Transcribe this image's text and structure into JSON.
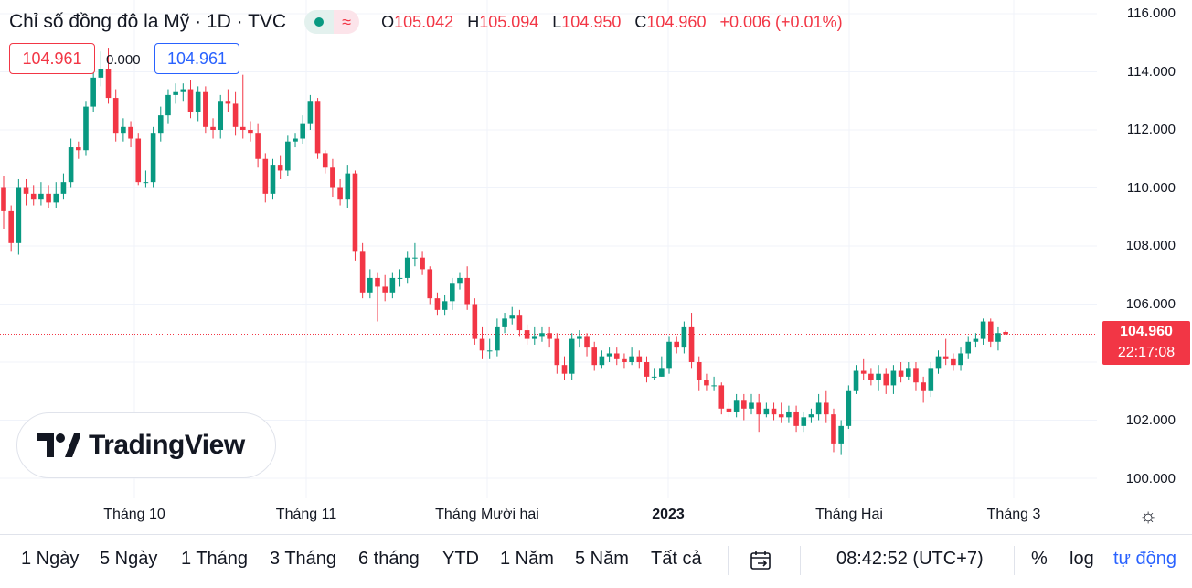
{
  "header": {
    "title": "Chỉ số đồng đô la Mỹ · 1D · TVC",
    "badge_text": "≈",
    "ohlc": {
      "o_label": "O",
      "o": "105.042",
      "h_label": "H",
      "h": "105.094",
      "l_label": "L",
      "l": "104.950",
      "c_label": "C",
      "c": "104.960",
      "change": "+0.006 (+0.01%)"
    }
  },
  "trade": {
    "sell": "104.961",
    "spread": "0.000",
    "buy": "104.961"
  },
  "logo_text": "TradingView",
  "price_label": {
    "price": "104.960",
    "countdown": "22:17:08"
  },
  "time_bar": {
    "ranges": [
      "1 Ngày",
      "5 Ngày",
      "1 Tháng",
      "3 Tháng",
      "6 tháng",
      "YTD",
      "1 Năm",
      "5 Năm",
      "Tất cả"
    ],
    "clock": "08:42:52 (UTC+7)",
    "percent": "%",
    "log": "log",
    "auto": "tự động"
  },
  "colors": {
    "up": "#089981",
    "down": "#f23645",
    "grid": "#f0f3fa",
    "accent": "#2962ff"
  },
  "chart_data": {
    "type": "candlestick",
    "title": "Chỉ số đồng đô la Mỹ · 1D · TVC",
    "interval": "1D",
    "x_tick_labels": [
      "Tháng 10",
      "Tháng 11",
      "Tháng Mười hai",
      "2023",
      "Tháng Hai",
      "Tháng 3"
    ],
    "y_tick_labels": [
      "116.000",
      "114.000",
      "112.000",
      "110.000",
      "108.000",
      "106.000",
      "102.000",
      "100.000"
    ],
    "ylim": [
      99.5,
      116.3
    ],
    "last_price": 104.96,
    "candles": [
      [
        110.0,
        109.2,
        110.4,
        108.6
      ],
      [
        109.2,
        108.1,
        109.4,
        107.8
      ],
      [
        108.1,
        110.0,
        110.3,
        107.7
      ],
      [
        110.0,
        109.8,
        110.3,
        109.4
      ],
      [
        109.8,
        109.6,
        110.1,
        109.4
      ],
      [
        109.6,
        109.8,
        110.2,
        109.4
      ],
      [
        109.8,
        109.5,
        110.1,
        109.3
      ],
      [
        109.5,
        109.8,
        110.2,
        109.3
      ],
      [
        109.8,
        110.2,
        110.5,
        109.6
      ],
      [
        110.2,
        111.4,
        111.7,
        110.0
      ],
      [
        111.4,
        111.3,
        111.6,
        111.0
      ],
      [
        111.3,
        112.8,
        113.0,
        111.1
      ],
      [
        112.8,
        113.8,
        114.2,
        112.6
      ],
      [
        113.8,
        114.1,
        114.7,
        113.5
      ],
      [
        114.1,
        113.1,
        114.8,
        112.9
      ],
      [
        113.1,
        111.9,
        113.4,
        111.6
      ],
      [
        111.9,
        112.1,
        112.4,
        111.6
      ],
      [
        112.1,
        111.7,
        112.3,
        111.4
      ],
      [
        111.7,
        110.2,
        111.9,
        110.1
      ],
      [
        110.2,
        110.2,
        110.6,
        110.0
      ],
      [
        110.2,
        111.9,
        112.1,
        110.0
      ],
      [
        111.9,
        112.5,
        112.8,
        111.6
      ],
      [
        112.5,
        113.2,
        113.4,
        112.2
      ],
      [
        113.2,
        113.3,
        113.6,
        112.9
      ],
      [
        113.3,
        113.4,
        113.6,
        113.0
      ],
      [
        113.4,
        112.6,
        113.7,
        112.4
      ],
      [
        112.6,
        113.3,
        113.5,
        112.3
      ],
      [
        113.3,
        112.1,
        113.5,
        111.9
      ],
      [
        112.1,
        112.0,
        112.4,
        111.7
      ],
      [
        112.0,
        113.0,
        113.2,
        111.7
      ],
      [
        113.0,
        112.9,
        113.4,
        112.6
      ],
      [
        112.9,
        112.1,
        113.3,
        111.8
      ],
      [
        112.1,
        112.0,
        113.9,
        111.7
      ],
      [
        112.0,
        111.9,
        112.3,
        111.6
      ],
      [
        111.9,
        111.0,
        112.2,
        110.7
      ],
      [
        111.0,
        109.8,
        111.2,
        109.5
      ],
      [
        109.8,
        110.8,
        111.0,
        109.6
      ],
      [
        110.8,
        110.6,
        111.1,
        110.3
      ],
      [
        110.6,
        111.6,
        111.8,
        110.4
      ],
      [
        111.6,
        111.7,
        111.9,
        111.4
      ],
      [
        111.7,
        112.2,
        112.5,
        111.5
      ],
      [
        112.2,
        113.0,
        113.2,
        112.0
      ],
      [
        113.0,
        111.2,
        113.1,
        111.0
      ],
      [
        111.2,
        110.7,
        111.3,
        110.5
      ],
      [
        110.7,
        110.0,
        111.0,
        109.7
      ],
      [
        110.0,
        109.6,
        110.3,
        109.4
      ],
      [
        109.6,
        110.5,
        110.8,
        109.3
      ],
      [
        110.5,
        107.8,
        110.6,
        107.5
      ],
      [
        107.8,
        106.4,
        108.1,
        106.2
      ],
      [
        106.4,
        106.9,
        107.2,
        106.2
      ],
      [
        106.9,
        106.6,
        107.1,
        105.4
      ],
      [
        106.6,
        106.4,
        107.0,
        106.1
      ],
      [
        106.4,
        106.9,
        107.1,
        106.2
      ],
      [
        106.9,
        106.9,
        107.2,
        106.6
      ],
      [
        106.9,
        107.6,
        107.8,
        106.7
      ],
      [
        107.6,
        107.6,
        108.1,
        107.3
      ],
      [
        107.6,
        107.2,
        107.8,
        107.0
      ],
      [
        107.2,
        106.2,
        107.3,
        106.0
      ],
      [
        106.2,
        105.8,
        106.4,
        105.6
      ],
      [
        105.8,
        106.1,
        106.3,
        105.6
      ],
      [
        106.1,
        106.7,
        106.9,
        105.8
      ],
      [
        106.7,
        106.9,
        107.1,
        106.5
      ],
      [
        106.9,
        106.0,
        107.3,
        105.8
      ],
      [
        106.0,
        104.8,
        106.2,
        104.6
      ],
      [
        104.8,
        104.4,
        105.2,
        104.1
      ],
      [
        104.4,
        104.4,
        104.8,
        104.1
      ],
      [
        104.4,
        105.2,
        105.5,
        104.2
      ],
      [
        105.2,
        105.5,
        105.7,
        105.0
      ],
      [
        105.5,
        105.6,
        105.9,
        105.3
      ],
      [
        105.6,
        105.1,
        105.8,
        104.9
      ],
      [
        105.1,
        104.8,
        105.3,
        104.6
      ],
      [
        104.8,
        104.9,
        105.2,
        104.6
      ],
      [
        104.9,
        105.0,
        105.2,
        104.7
      ],
      [
        105.0,
        104.8,
        105.2,
        104.5
      ],
      [
        104.8,
        103.9,
        105.0,
        103.6
      ],
      [
        103.9,
        103.6,
        104.2,
        103.4
      ],
      [
        103.6,
        104.8,
        105.0,
        103.4
      ],
      [
        104.8,
        104.9,
        105.1,
        104.5
      ],
      [
        104.9,
        104.5,
        105.0,
        104.2
      ],
      [
        104.5,
        103.9,
        104.7,
        103.7
      ],
      [
        103.9,
        104.2,
        104.4,
        103.8
      ],
      [
        104.2,
        104.3,
        104.5,
        104.0
      ],
      [
        104.3,
        104.1,
        104.5,
        103.9
      ],
      [
        104.1,
        104.0,
        104.3,
        103.8
      ],
      [
        104.0,
        104.2,
        104.5,
        103.9
      ],
      [
        104.2,
        104.0,
        104.4,
        103.8
      ],
      [
        104.0,
        103.5,
        104.2,
        103.3
      ],
      [
        103.5,
        103.5,
        103.8,
        103.4
      ],
      [
        103.5,
        103.8,
        104.2,
        103.5
      ],
      [
        103.8,
        104.7,
        104.9,
        103.6
      ],
      [
        104.7,
        104.5,
        104.9,
        104.3
      ],
      [
        104.5,
        105.2,
        105.4,
        104.3
      ],
      [
        105.2,
        104.0,
        105.7,
        103.8
      ],
      [
        104.0,
        103.4,
        104.2,
        103.0
      ],
      [
        103.4,
        103.2,
        103.6,
        103.0
      ],
      [
        103.2,
        103.2,
        103.5,
        103.0
      ],
      [
        103.2,
        102.4,
        103.3,
        102.2
      ],
      [
        102.4,
        102.3,
        102.6,
        102.1
      ],
      [
        102.3,
        102.7,
        102.9,
        102.1
      ],
      [
        102.7,
        102.4,
        102.9,
        102.0
      ],
      [
        102.4,
        102.6,
        102.9,
        102.2
      ],
      [
        102.6,
        102.2,
        102.9,
        101.6
      ],
      [
        102.2,
        102.4,
        102.6,
        102.1
      ],
      [
        102.4,
        102.2,
        102.6,
        102.0
      ],
      [
        102.2,
        102.1,
        102.6,
        101.9
      ],
      [
        102.1,
        102.3,
        102.5,
        101.9
      ],
      [
        102.3,
        101.8,
        102.5,
        101.6
      ],
      [
        101.8,
        102.1,
        102.3,
        101.6
      ],
      [
        102.1,
        102.2,
        102.4,
        101.9
      ],
      [
        102.2,
        102.6,
        102.9,
        102.0
      ],
      [
        102.6,
        102.2,
        103.0,
        101.9
      ],
      [
        102.2,
        101.2,
        102.4,
        100.9
      ],
      [
        101.2,
        101.8,
        102.0,
        100.8
      ],
      [
        101.8,
        103.0,
        103.2,
        101.7
      ],
      [
        103.0,
        103.7,
        103.9,
        102.9
      ],
      [
        103.7,
        103.6,
        104.1,
        103.4
      ],
      [
        103.6,
        103.4,
        103.8,
        103.2
      ],
      [
        103.4,
        103.6,
        103.9,
        103.0
      ],
      [
        103.6,
        103.2,
        103.8,
        102.9
      ],
      [
        103.2,
        103.7,
        103.9,
        102.9
      ],
      [
        103.7,
        103.5,
        104.0,
        103.3
      ],
      [
        103.5,
        103.8,
        104.0,
        103.4
      ],
      [
        103.8,
        103.3,
        104.0,
        103.0
      ],
      [
        103.3,
        103.0,
        103.5,
        102.6
      ],
      [
        103.0,
        103.8,
        104.0,
        102.8
      ],
      [
        103.8,
        104.2,
        104.4,
        103.6
      ],
      [
        104.2,
        104.1,
        104.8,
        103.9
      ],
      [
        104.1,
        103.9,
        104.3,
        103.7
      ],
      [
        103.9,
        104.3,
        104.5,
        103.7
      ],
      [
        104.3,
        104.7,
        104.9,
        104.1
      ],
      [
        104.7,
        104.8,
        105.0,
        104.5
      ],
      [
        104.8,
        105.4,
        105.5,
        104.6
      ],
      [
        105.4,
        104.7,
        105.5,
        104.5
      ],
      [
        104.7,
        105.0,
        105.2,
        104.4
      ],
      [
        105.04,
        104.96,
        105.09,
        104.95
      ]
    ]
  }
}
